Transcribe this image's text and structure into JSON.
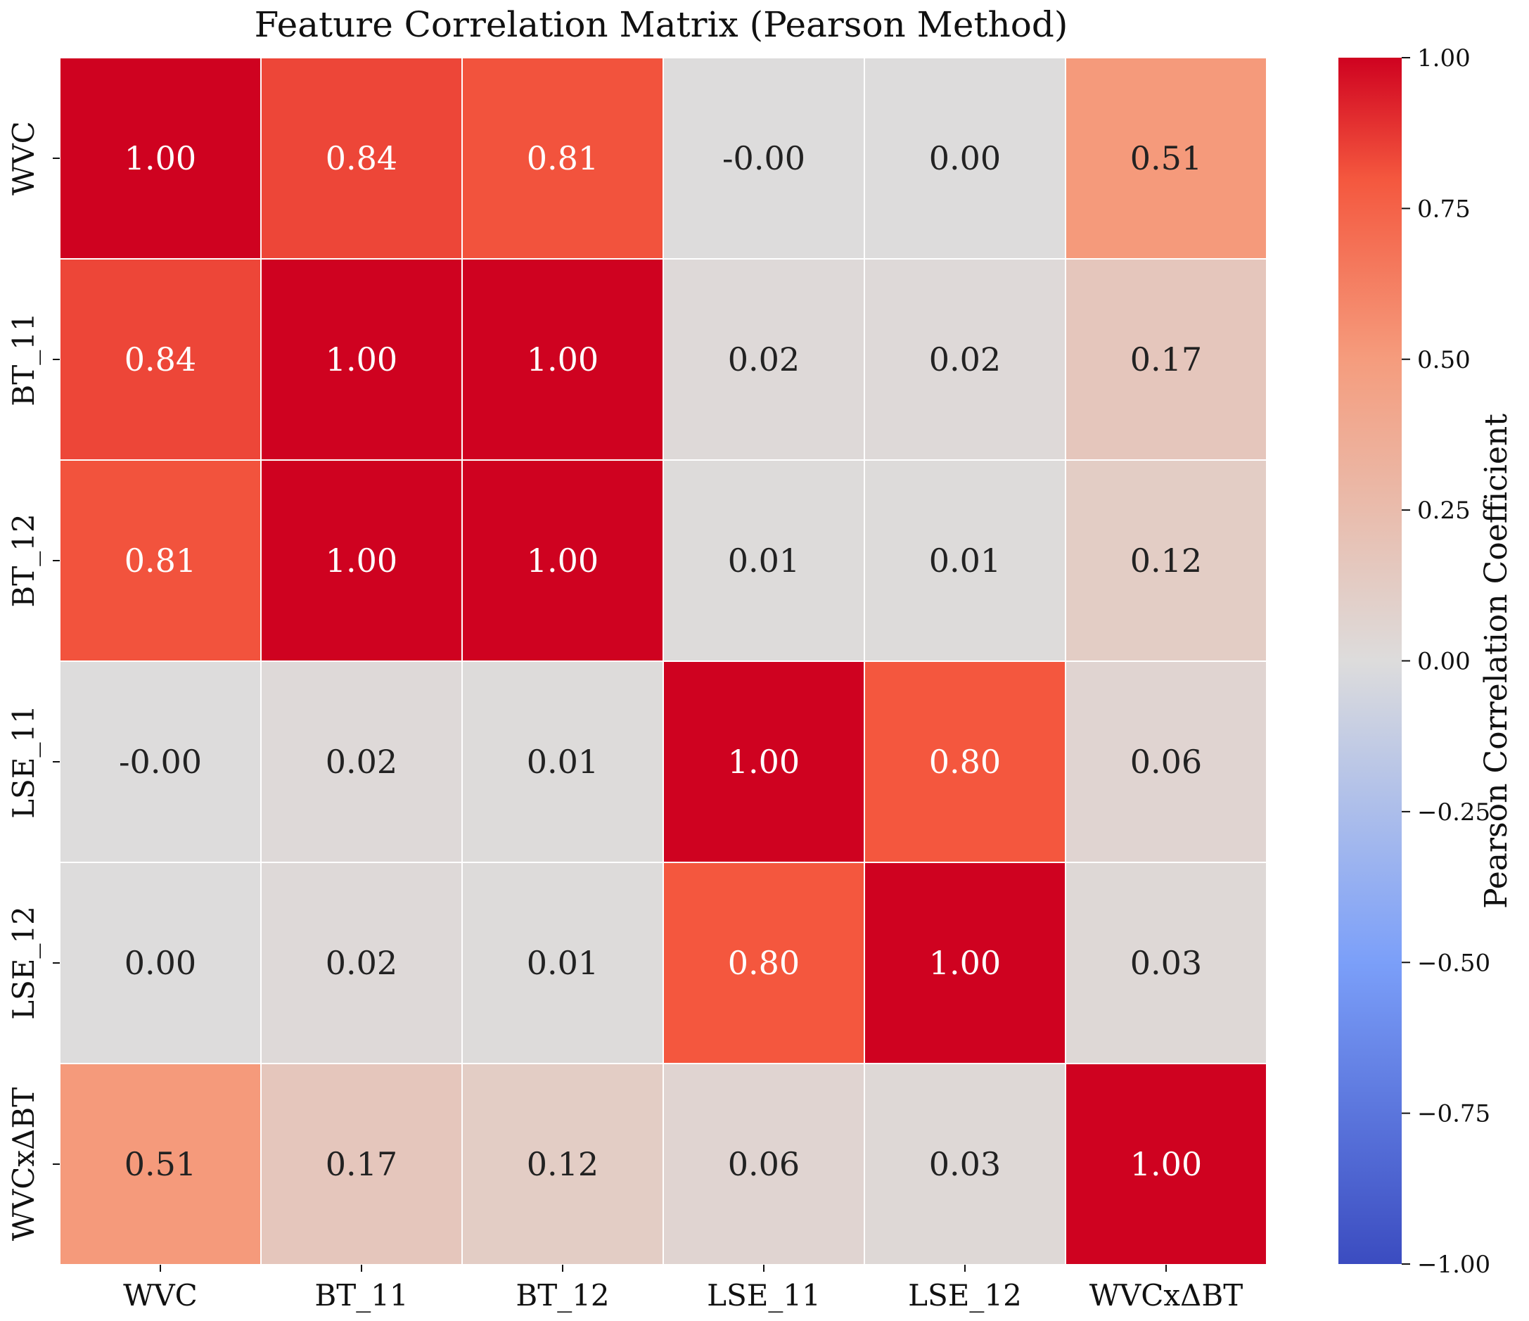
{
  "chart_data": {
    "type": "heatmap",
    "title": "Feature Correlation Matrix (Pearson Method)",
    "xlabel": "",
    "ylabel": "",
    "x_labels": [
      "WVC",
      "BT_11",
      "BT_12",
      "LSE_11",
      "LSE_12",
      "WVCxΔBT"
    ],
    "y_labels": [
      "WVC",
      "BT_11",
      "BT_12",
      "LSE_11",
      "LSE_12",
      "WVCxΔBT"
    ],
    "values": [
      [
        1.0,
        0.84,
        0.81,
        -0.0,
        0.0,
        0.51
      ],
      [
        0.84,
        1.0,
        1.0,
        0.02,
        0.02,
        0.17
      ],
      [
        0.81,
        1.0,
        1.0,
        0.01,
        0.01,
        0.12
      ],
      [
        -0.0,
        0.02,
        0.01,
        1.0,
        0.8,
        0.06
      ],
      [
        0.0,
        0.02,
        0.01,
        0.8,
        1.0,
        0.03
      ],
      [
        0.51,
        0.17,
        0.12,
        0.06,
        0.03,
        1.0
      ]
    ],
    "annotations": [
      [
        "1.00",
        "0.84",
        "0.81",
        "-0.00",
        "0.00",
        "0.51"
      ],
      [
        "0.84",
        "1.00",
        "1.00",
        "0.02",
        "0.02",
        "0.17"
      ],
      [
        "0.81",
        "1.00",
        "1.00",
        "0.01",
        "0.01",
        "0.12"
      ],
      [
        "-0.00",
        "0.02",
        "0.01",
        "1.00",
        "0.80",
        "0.06"
      ],
      [
        "0.00",
        "0.02",
        "0.01",
        "0.80",
        "1.00",
        "0.03"
      ],
      [
        "0.51",
        "0.17",
        "0.12",
        "0.06",
        "0.03",
        "1.00"
      ]
    ],
    "colorbar": {
      "label": "Pearson Correlation Coefficient",
      "range": [
        -1.0,
        1.0
      ],
      "ticks": [
        1.0,
        0.75,
        0.5,
        0.25,
        0.0,
        -0.25,
        -0.5,
        -0.75,
        -1.0
      ],
      "tick_labels": [
        "1.00",
        "0.75",
        "0.50",
        "0.25",
        "0.00",
        "−0.25",
        "−0.50",
        "−0.75",
        "−1.00"
      ],
      "colormap": "coolwarm",
      "colormap_stops": [
        {
          "value": -1.0,
          "color": "#3b4cc0"
        },
        {
          "value": -0.5,
          "color": "#7b9ff9"
        },
        {
          "value": 0.0,
          "color": "#dddcdc"
        },
        {
          "value": 0.5,
          "color": "#f59c7d"
        },
        {
          "value": 0.8,
          "color": "#f4573e"
        },
        {
          "value": 1.0,
          "color": "#cf0220"
        }
      ]
    },
    "grid_line_color": "#ffffff",
    "annotation_light_text_threshold": 0.6
  }
}
